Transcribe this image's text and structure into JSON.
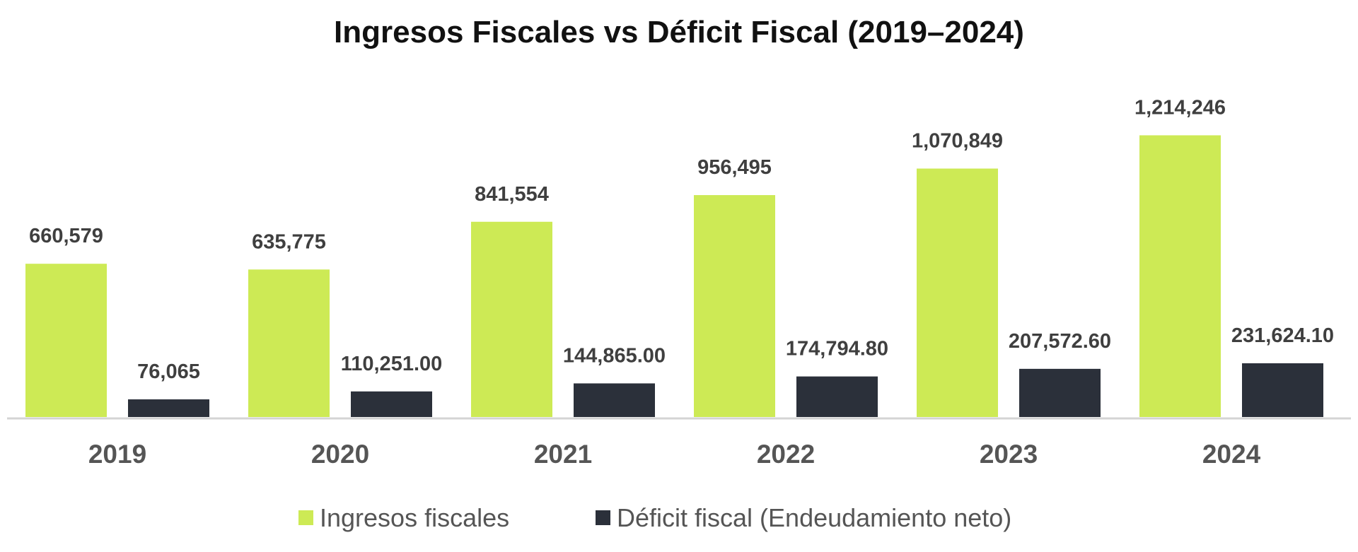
{
  "chart_data": {
    "type": "bar",
    "title": "Ingresos Fiscales vs Déficit Fiscal (2019–2024)",
    "xlabel": "",
    "ylabel": "",
    "ylim": [
      0,
      1300000
    ],
    "grid": false,
    "legend_position": "bottom-center",
    "categories": [
      "2019",
      "2020",
      "2021",
      "2022",
      "2023",
      "2024"
    ],
    "series": [
      {
        "name": "Ingresos fiscales",
        "color": "#cdea55",
        "values": [
          660579,
          635775,
          841554,
          956495,
          1070849,
          1214246
        ],
        "labels": [
          "660,579",
          "635,775",
          "841,554",
          "956,495",
          "1,070,849",
          "1,214,246"
        ]
      },
      {
        "name": "Déficit fiscal (Endeudamiento neto)",
        "color": "#2b303a",
        "values": [
          76065,
          110251.0,
          144865.0,
          174794.8,
          207572.6,
          231624.1
        ],
        "labels": [
          "76,065",
          "110,251.00",
          "144,865.00",
          "174,794.80",
          "207,572.60",
          "231,624.10"
        ]
      }
    ]
  }
}
